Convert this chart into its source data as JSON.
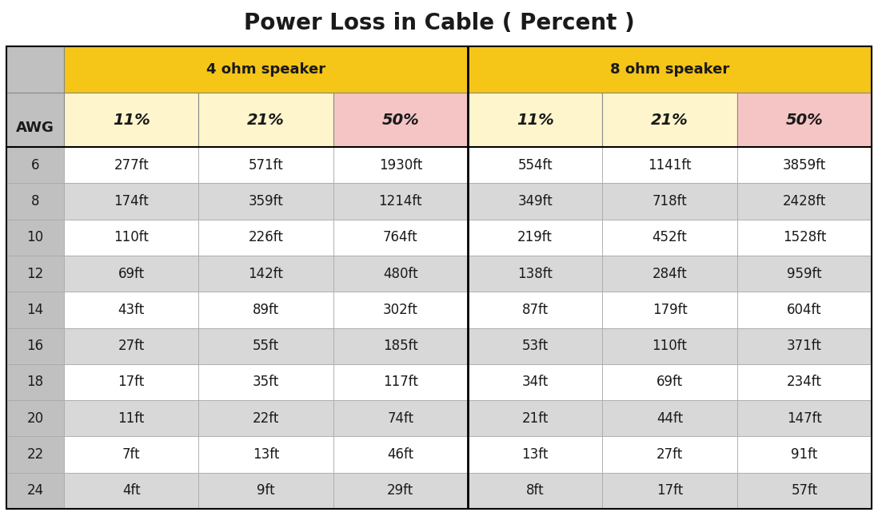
{
  "title": "Power Loss in Cable ( Percent )",
  "title_fontsize": 20,
  "col_group_labels": [
    "4 ohm speaker",
    "8 ohm speaker"
  ],
  "col_sub_labels": [
    "11%",
    "21%",
    "50%",
    "11%",
    "21%",
    "50%"
  ],
  "row_label": "AWG",
  "awg_values": [
    "6",
    "8",
    "10",
    "12",
    "14",
    "16",
    "18",
    "20",
    "22",
    "24"
  ],
  "table_data": [
    [
      "277ft",
      "571ft",
      "1930ft",
      "554ft",
      "1141ft",
      "3859ft"
    ],
    [
      "174ft",
      "359ft",
      "1214ft",
      "349ft",
      "718ft",
      "2428ft"
    ],
    [
      "110ft",
      "226ft",
      "764ft",
      "219ft",
      "452ft",
      "1528ft"
    ],
    [
      "69ft",
      "142ft",
      "480ft",
      "138ft",
      "284ft",
      "959ft"
    ],
    [
      "43ft",
      "89ft",
      "302ft",
      "87ft",
      "179ft",
      "604ft"
    ],
    [
      "27ft",
      "55ft",
      "185ft",
      "53ft",
      "110ft",
      "371ft"
    ],
    [
      "17ft",
      "35ft",
      "117ft",
      "34ft",
      "69ft",
      "234ft"
    ],
    [
      "11ft",
      "22ft",
      "74ft",
      "21ft",
      "44ft",
      "147ft"
    ],
    [
      "7ft",
      "13ft",
      "46ft",
      "13ft",
      "27ft",
      "91ft"
    ],
    [
      "4ft",
      "9ft",
      "29ft",
      "8ft",
      "17ft",
      "57ft"
    ]
  ],
  "color_group_header": "#F5C518",
  "color_11pct_bg": "#FFF5CC",
  "color_21pct_bg": "#FFF5CC",
  "color_50pct_bg": "#F5C5C5",
  "color_row_odd": "#FFFFFF",
  "color_row_even": "#D8D8D8",
  "color_awg_col": "#C0C0C0",
  "color_border": "#000000",
  "color_bg": "#FFFFFF",
  "text_color": "#1A1A1A",
  "data_fontsize": 12,
  "header_fontsize": 13,
  "sub_label_fontsize": 14
}
